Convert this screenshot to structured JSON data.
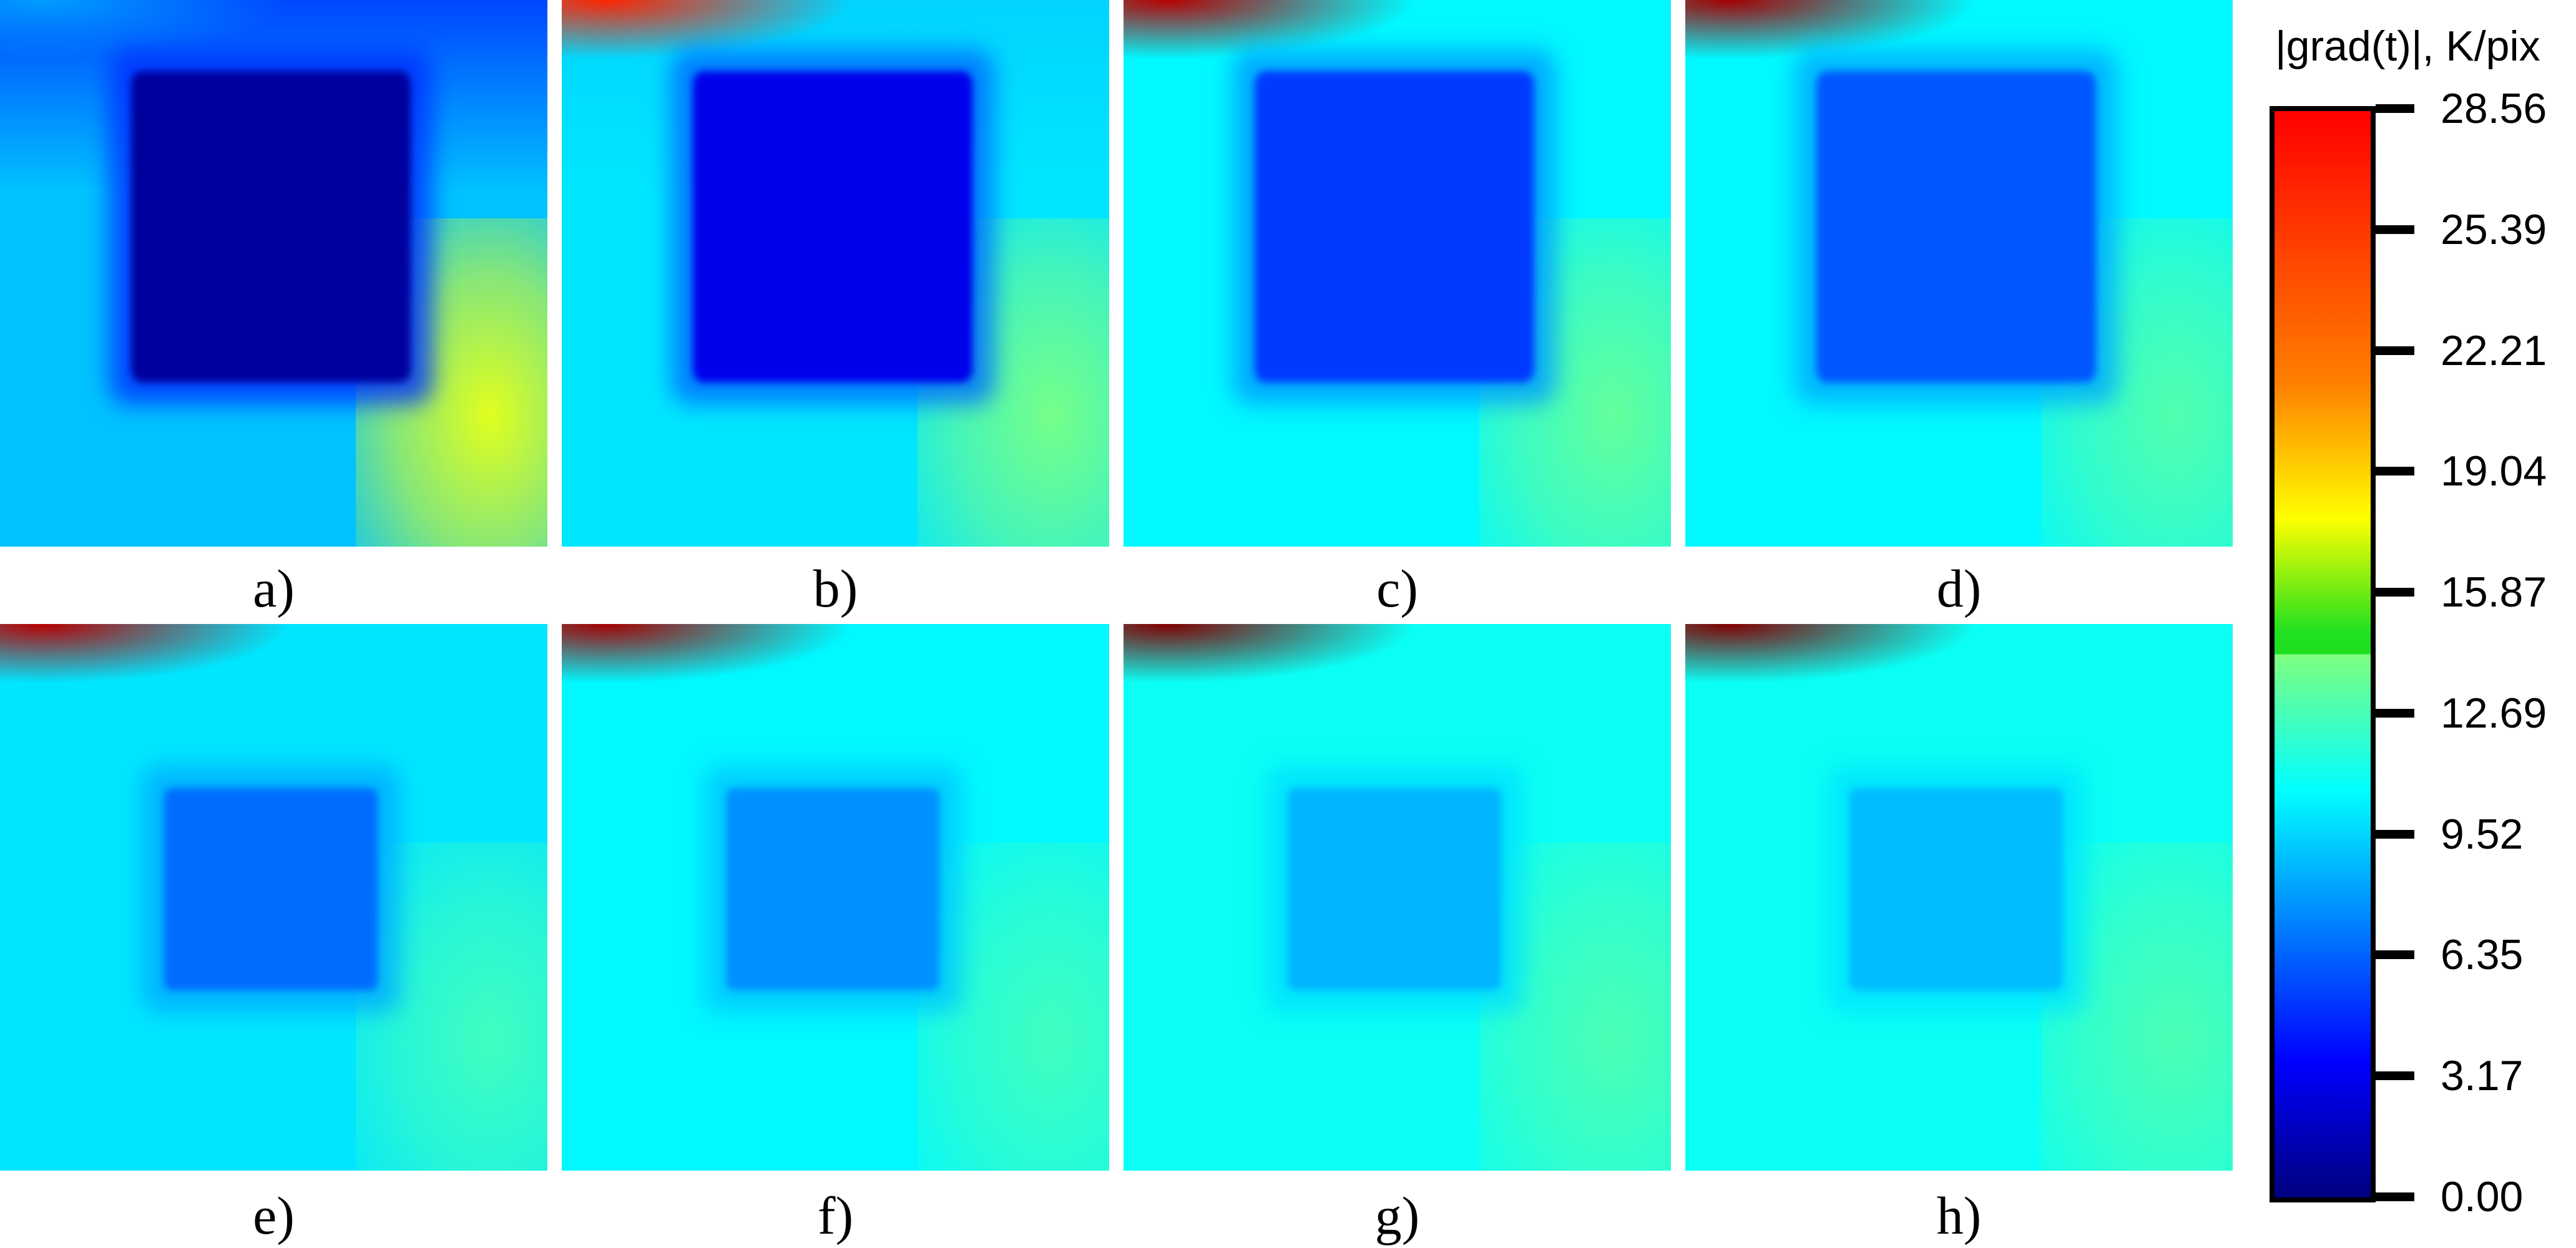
{
  "chart_data": {
    "type": "heatmap",
    "colormap": "jet",
    "colorbar": {
      "title": "|grad(t)|, K/pix",
      "range": [
        0.0,
        28.56
      ],
      "ticks": [
        "28.56",
        "25.39",
        "22.21",
        "19.04",
        "15.87",
        "12.69",
        "9.52",
        "6.35",
        "3.17",
        "0.00"
      ]
    },
    "panels": [
      {
        "label": "a)",
        "background": 9.0,
        "top_band": 5.5,
        "square": 0.8,
        "bottom_right": 17.0,
        "top_left_corner": 8.0
      },
      {
        "label": "b)",
        "background": 10.0,
        "top_band": 9.5,
        "square": 3.0,
        "bottom_right": 14.0,
        "top_left_corner": 24.0
      },
      {
        "label": "c)",
        "background": 10.5,
        "top_band": 10.5,
        "square": 5.2,
        "bottom_right": 13.5,
        "top_left_corner": 27.0
      },
      {
        "label": "d)",
        "background": 10.5,
        "top_band": 10.5,
        "square": 6.0,
        "bottom_right": 13.0,
        "top_left_corner": 27.5
      },
      {
        "label": "e)",
        "background": 10.0,
        "top_band": 10.0,
        "square": 6.6,
        "bottom_right": 12.5,
        "top_left_corner": 27.0
      },
      {
        "label": "f)",
        "background": 10.5,
        "top_band": 10.5,
        "square": 7.6,
        "bottom_right": 12.5,
        "top_left_corner": 27.5
      },
      {
        "label": "g)",
        "background": 11.0,
        "top_band": 11.0,
        "square": 8.6,
        "bottom_right": 12.8,
        "top_left_corner": 28.5
      },
      {
        "label": "h)",
        "background": 11.0,
        "top_band": 11.0,
        "square": 8.8,
        "bottom_right": 12.8,
        "top_left_corner": 28.5
      }
    ]
  }
}
